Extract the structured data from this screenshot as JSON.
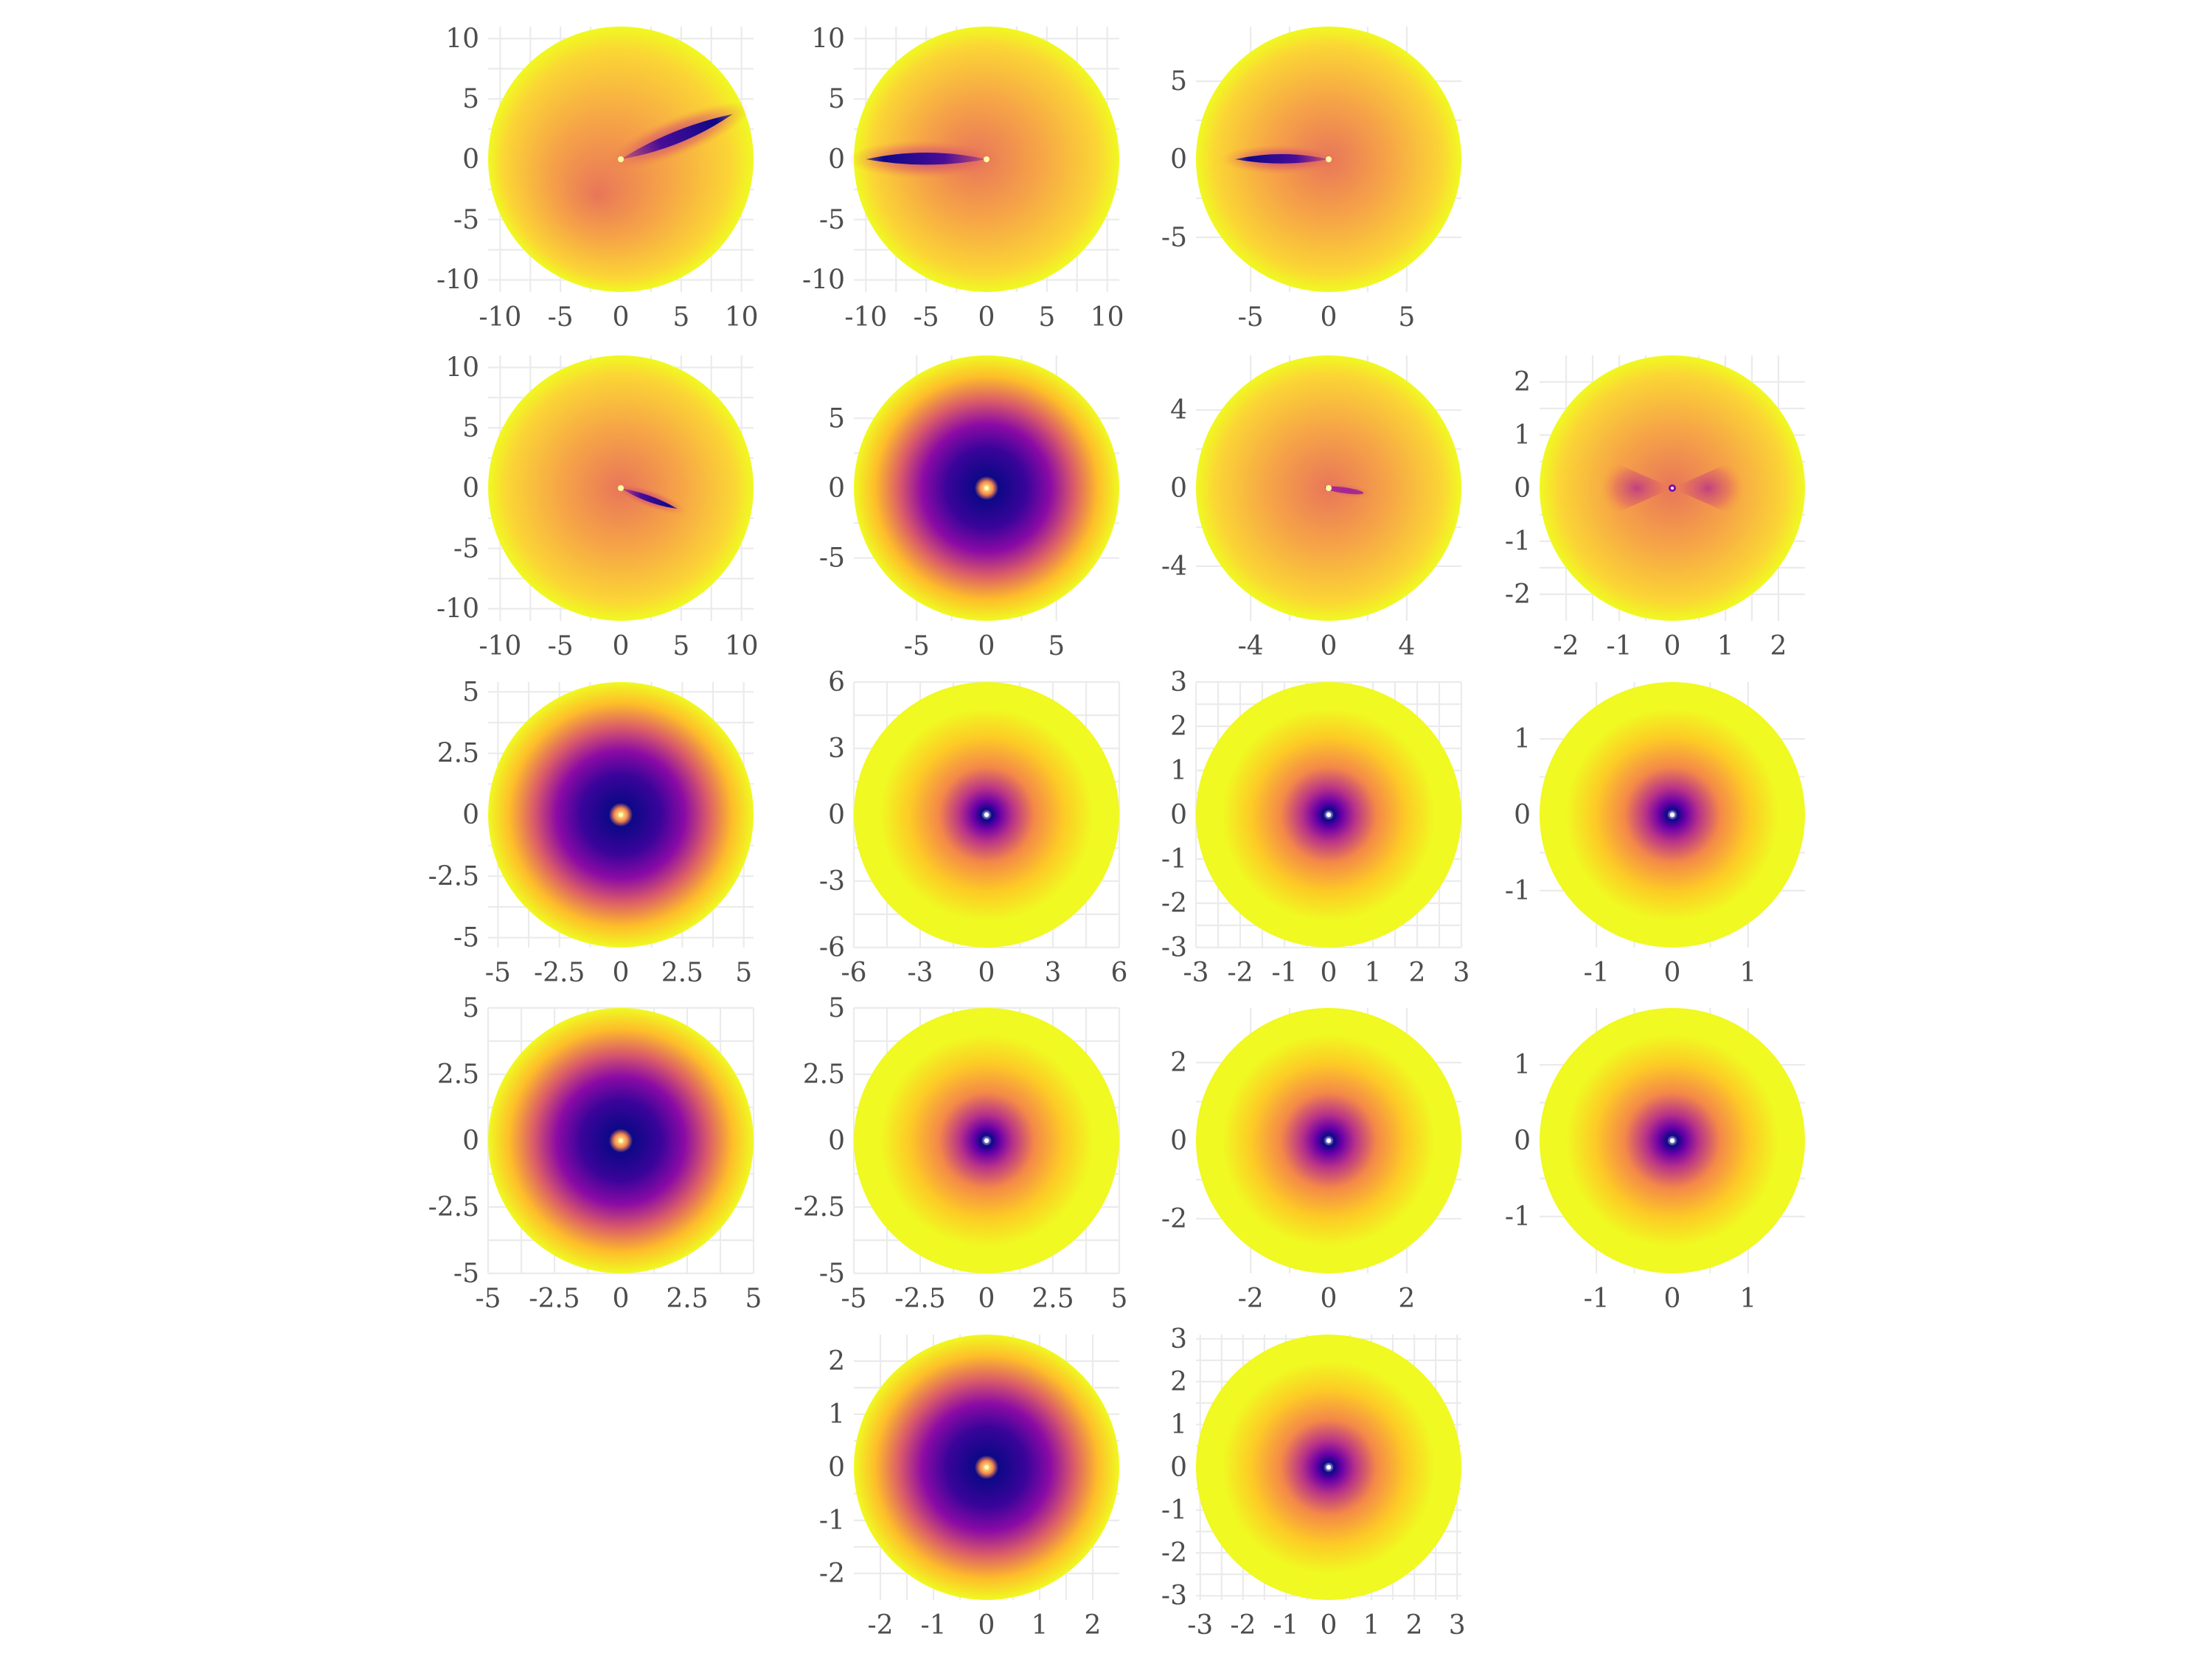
{
  "chart_data": [
    {
      "type": "heatmap",
      "row": 0,
      "col": 0,
      "xlim": [
        -11,
        11
      ],
      "ylim": [
        -11,
        11
      ],
      "x_ticks": [
        -10,
        -5,
        0,
        5,
        10
      ],
      "y_ticks": [
        -10,
        -5,
        0,
        5,
        10
      ],
      "x_tick_labels": [
        "-10",
        "-5",
        "0",
        "5",
        "10"
      ],
      "y_tick_labels": [
        "-10",
        "-5",
        "0",
        "5",
        "10"
      ],
      "radius": 11,
      "feature": {
        "shape": "streak",
        "angle_deg": 22,
        "length": 10,
        "core_offset": [
          -2,
          -3
        ],
        "intensity": "high"
      }
    },
    {
      "type": "heatmap",
      "row": 0,
      "col": 1,
      "xlim": [
        -11,
        11
      ],
      "ylim": [
        -11,
        11
      ],
      "x_ticks": [
        -10,
        -5,
        0,
        5,
        10
      ],
      "y_ticks": [
        -10,
        -5,
        0,
        5,
        10
      ],
      "x_tick_labels": [
        "-10",
        "-5",
        "0",
        "5",
        "10"
      ],
      "y_tick_labels": [
        "-10",
        "-5",
        "0",
        "5",
        "10"
      ],
      "radius": 11,
      "feature": {
        "shape": "streak",
        "angle_deg": 180,
        "length": 10,
        "core_offset": [
          -1,
          0
        ],
        "intensity": "high"
      }
    },
    {
      "type": "heatmap",
      "row": 0,
      "col": 2,
      "xlim": [
        -8.5,
        8.5
      ],
      "ylim": [
        -8.5,
        8.5
      ],
      "x_ticks": [
        -5,
        0,
        5
      ],
      "y_ticks": [
        -5,
        0,
        5
      ],
      "x_tick_labels": [
        "-5",
        "0",
        "5"
      ],
      "y_tick_labels": [
        "-5",
        "0",
        "5"
      ],
      "radius": 8.5,
      "feature": {
        "shape": "streak",
        "angle_deg": 180,
        "length": 6,
        "core_offset": [
          0,
          0
        ],
        "intensity": "high"
      }
    },
    {
      "type": "heatmap",
      "row": 1,
      "col": 0,
      "xlim": [
        -11,
        11
      ],
      "ylim": [
        -11,
        11
      ],
      "x_ticks": [
        -10,
        -5,
        0,
        5,
        10
      ],
      "y_ticks": [
        -10,
        -5,
        0,
        5,
        10
      ],
      "x_tick_labels": [
        "-10",
        "-5",
        "0",
        "5",
        "10"
      ],
      "y_tick_labels": [
        "-10",
        "-5",
        "0",
        "5",
        "10"
      ],
      "radius": 11,
      "feature": {
        "shape": "streak",
        "angle_deg": -20,
        "length": 5,
        "core_offset": [
          0,
          0
        ],
        "intensity": "high"
      }
    },
    {
      "type": "heatmap",
      "row": 1,
      "col": 1,
      "xlim": [
        -9.5,
        9.5
      ],
      "ylim": [
        -9.5,
        9.5
      ],
      "x_ticks": [
        -5,
        0,
        5
      ],
      "y_ticks": [
        -5,
        0,
        5
      ],
      "x_tick_labels": [
        "-5",
        "0",
        "5"
      ],
      "y_tick_labels": [
        "-5",
        "0",
        "5"
      ],
      "radius": 9.5,
      "feature": {
        "shape": "ring",
        "angle_deg": 0,
        "length": 0,
        "core_offset": [
          0,
          0
        ],
        "intensity": "high"
      }
    },
    {
      "type": "heatmap",
      "row": 1,
      "col": 2,
      "xlim": [
        -6.8,
        6.8
      ],
      "ylim": [
        -6.8,
        6.8
      ],
      "x_ticks": [
        -4,
        0,
        4
      ],
      "y_ticks": [
        -4,
        0,
        4
      ],
      "x_tick_labels": [
        "-4",
        "0",
        "4"
      ],
      "y_tick_labels": [
        "-4",
        "0",
        "4"
      ],
      "radius": 6.8,
      "feature": {
        "shape": "streak",
        "angle_deg": -8,
        "length": 2,
        "core_offset": [
          0,
          0
        ],
        "intensity": "low"
      }
    },
    {
      "type": "heatmap",
      "row": 1,
      "col": 3,
      "xlim": [
        -2.5,
        2.5
      ],
      "ylim": [
        -2.5,
        2.5
      ],
      "x_ticks": [
        -2,
        -1,
        0,
        1,
        2
      ],
      "y_ticks": [
        -2,
        -1,
        0,
        1,
        2
      ],
      "x_tick_labels": [
        "-2",
        "-1",
        "0",
        "1",
        "2"
      ],
      "y_tick_labels": [
        "-2",
        "-1",
        "0",
        "1",
        "2"
      ],
      "radius": 2.5,
      "feature": {
        "shape": "bowtie",
        "angle_deg": 0,
        "length": 0,
        "core_offset": [
          0,
          0
        ],
        "intensity": "low"
      }
    },
    {
      "type": "heatmap",
      "row": 2,
      "col": 0,
      "xlim": [
        -5.4,
        5.4
      ],
      "ylim": [
        -5.4,
        5.4
      ],
      "x_ticks": [
        -5,
        -2.5,
        0,
        2.5,
        5
      ],
      "y_ticks": [
        -5,
        -2.5,
        0,
        2.5,
        5
      ],
      "x_tick_labels": [
        "-5",
        "-2.5",
        "0",
        "2.5",
        "5"
      ],
      "y_tick_labels": [
        "-5",
        "-2.5",
        "0",
        "2.5",
        "5"
      ],
      "radius": 5.4,
      "feature": {
        "shape": "ring",
        "angle_deg": 0,
        "length": 0,
        "core_offset": [
          0,
          0
        ],
        "intensity": "high"
      }
    },
    {
      "type": "heatmap",
      "row": 2,
      "col": 1,
      "xlim": [
        -6,
        6
      ],
      "ylim": [
        -6,
        6
      ],
      "x_ticks": [
        -6,
        -3,
        0,
        3,
        6
      ],
      "y_ticks": [
        -6,
        -3,
        0,
        3,
        6
      ],
      "x_tick_labels": [
        "-6",
        "-3",
        "0",
        "3",
        "6"
      ],
      "y_tick_labels": [
        "-6",
        "-3",
        "0",
        "3",
        "6"
      ],
      "radius": 6,
      "feature": {
        "shape": "ring",
        "angle_deg": 0,
        "length": 0,
        "core_offset": [
          0,
          0
        ],
        "intensity": "medium"
      }
    },
    {
      "type": "heatmap",
      "row": 2,
      "col": 2,
      "xlim": [
        -3,
        3
      ],
      "ylim": [
        -3,
        3
      ],
      "x_ticks": [
        -3,
        -2,
        -1,
        0,
        1,
        2,
        3
      ],
      "y_ticks": [
        -3,
        -2,
        -1,
        0,
        1,
        2,
        3
      ],
      "x_tick_labels": [
        "-3",
        "-2",
        "-1",
        "0",
        "1",
        "2",
        "3"
      ],
      "y_tick_labels": [
        "-3",
        "-2",
        "-1",
        "0",
        "1",
        "2",
        "3"
      ],
      "radius": 3,
      "feature": {
        "shape": "ring",
        "angle_deg": 0,
        "length": 0,
        "core_offset": [
          0,
          0
        ],
        "intensity": "medium"
      }
    },
    {
      "type": "heatmap",
      "row": 2,
      "col": 3,
      "xlim": [
        -1.75,
        1.75
      ],
      "ylim": [
        -1.75,
        1.75
      ],
      "x_ticks": [
        -1,
        0,
        1
      ],
      "y_ticks": [
        -1,
        0,
        1
      ],
      "x_tick_labels": [
        "-1",
        "0",
        "1"
      ],
      "y_tick_labels": [
        "-1",
        "0",
        "1"
      ],
      "radius": 1.75,
      "feature": {
        "shape": "ring",
        "angle_deg": 0,
        "length": 0,
        "core_offset": [
          0,
          0
        ],
        "intensity": "medium"
      }
    },
    {
      "type": "heatmap",
      "row": 3,
      "col": 0,
      "xlim": [
        -5,
        5
      ],
      "ylim": [
        -5,
        5
      ],
      "x_ticks": [
        -5,
        -2.5,
        0,
        2.5,
        5
      ],
      "y_ticks": [
        -5,
        -2.5,
        0,
        2.5,
        5
      ],
      "x_tick_labels": [
        "-5",
        "-2.5",
        "0",
        "2.5",
        "5"
      ],
      "y_tick_labels": [
        "-5",
        "-2.5",
        "0",
        "2.5",
        "5"
      ],
      "radius": 5,
      "feature": {
        "shape": "ring",
        "angle_deg": 0,
        "length": 0,
        "core_offset": [
          0,
          0
        ],
        "intensity": "high"
      }
    },
    {
      "type": "heatmap",
      "row": 3,
      "col": 1,
      "xlim": [
        -5,
        5
      ],
      "ylim": [
        -5,
        5
      ],
      "x_ticks": [
        -5,
        -2.5,
        0,
        2.5,
        5
      ],
      "y_ticks": [
        -5,
        -2.5,
        0,
        2.5,
        5
      ],
      "x_tick_labels": [
        "-5",
        "-2.5",
        "0",
        "2.5",
        "5"
      ],
      "y_tick_labels": [
        "-5",
        "-2.5",
        "0",
        "2.5",
        "5"
      ],
      "radius": 5,
      "feature": {
        "shape": "ring",
        "angle_deg": 0,
        "length": 0,
        "core_offset": [
          0,
          0
        ],
        "intensity": "medium"
      }
    },
    {
      "type": "heatmap",
      "row": 3,
      "col": 2,
      "xlim": [
        -3.4,
        3.4
      ],
      "ylim": [
        -3.4,
        3.4
      ],
      "x_ticks": [
        -2,
        0,
        2
      ],
      "y_ticks": [
        -2,
        0,
        2
      ],
      "x_tick_labels": [
        "-2",
        "0",
        "2"
      ],
      "y_tick_labels": [
        "-2",
        "0",
        "2"
      ],
      "radius": 3.4,
      "feature": {
        "shape": "ring",
        "angle_deg": 0,
        "length": 0,
        "core_offset": [
          0,
          0
        ],
        "intensity": "medium"
      }
    },
    {
      "type": "heatmap",
      "row": 3,
      "col": 3,
      "xlim": [
        -1.75,
        1.75
      ],
      "ylim": [
        -1.75,
        1.75
      ],
      "x_ticks": [
        -1,
        0,
        1
      ],
      "y_ticks": [
        -1,
        0,
        1
      ],
      "x_tick_labels": [
        "-1",
        "0",
        "1"
      ],
      "y_tick_labels": [
        "-1",
        "0",
        "1"
      ],
      "radius": 1.75,
      "feature": {
        "shape": "ring",
        "angle_deg": 0,
        "length": 0,
        "core_offset": [
          0,
          0
        ],
        "intensity": "medium"
      }
    },
    {
      "type": "heatmap",
      "row": 4,
      "col": 1,
      "xlim": [
        -2.5,
        2.5
      ],
      "ylim": [
        -2.5,
        2.5
      ],
      "x_ticks": [
        -2,
        -1,
        0,
        1,
        2
      ],
      "y_ticks": [
        -2,
        -1,
        0,
        1,
        2
      ],
      "x_tick_labels": [
        "-2",
        "-1",
        "0",
        "1",
        "2"
      ],
      "y_tick_labels": [
        "-2",
        "-1",
        "0",
        "1",
        "2"
      ],
      "radius": 2.5,
      "feature": {
        "shape": "ring",
        "angle_deg": 0,
        "length": 0,
        "core_offset": [
          0,
          0
        ],
        "intensity": "high"
      }
    },
    {
      "type": "heatmap",
      "row": 4,
      "col": 2,
      "xlim": [
        -3.1,
        3.1
      ],
      "ylim": [
        -3.1,
        3.1
      ],
      "x_ticks": [
        -3,
        -2,
        -1,
        0,
        1,
        2,
        3
      ],
      "y_ticks": [
        -3,
        -2,
        -1,
        0,
        1,
        2,
        3
      ],
      "x_tick_labels": [
        "-3",
        "-2",
        "-1",
        "0",
        "1",
        "2",
        "3"
      ],
      "y_tick_labels": [
        "-3",
        "-2",
        "-1",
        "0",
        "1",
        "2",
        "3"
      ],
      "radius": 3.1,
      "feature": {
        "shape": "ring",
        "angle_deg": 0,
        "length": 0,
        "core_offset": [
          0,
          0
        ],
        "intensity": "medium"
      }
    }
  ],
  "colormap": {
    "name": "plasma",
    "colors": [
      "#0d0887",
      "#5302a3",
      "#8b0aa5",
      "#b83289",
      "#db5c68",
      "#f48849",
      "#febd2a",
      "#f0f921"
    ]
  },
  "grid": true,
  "legend": "none"
}
